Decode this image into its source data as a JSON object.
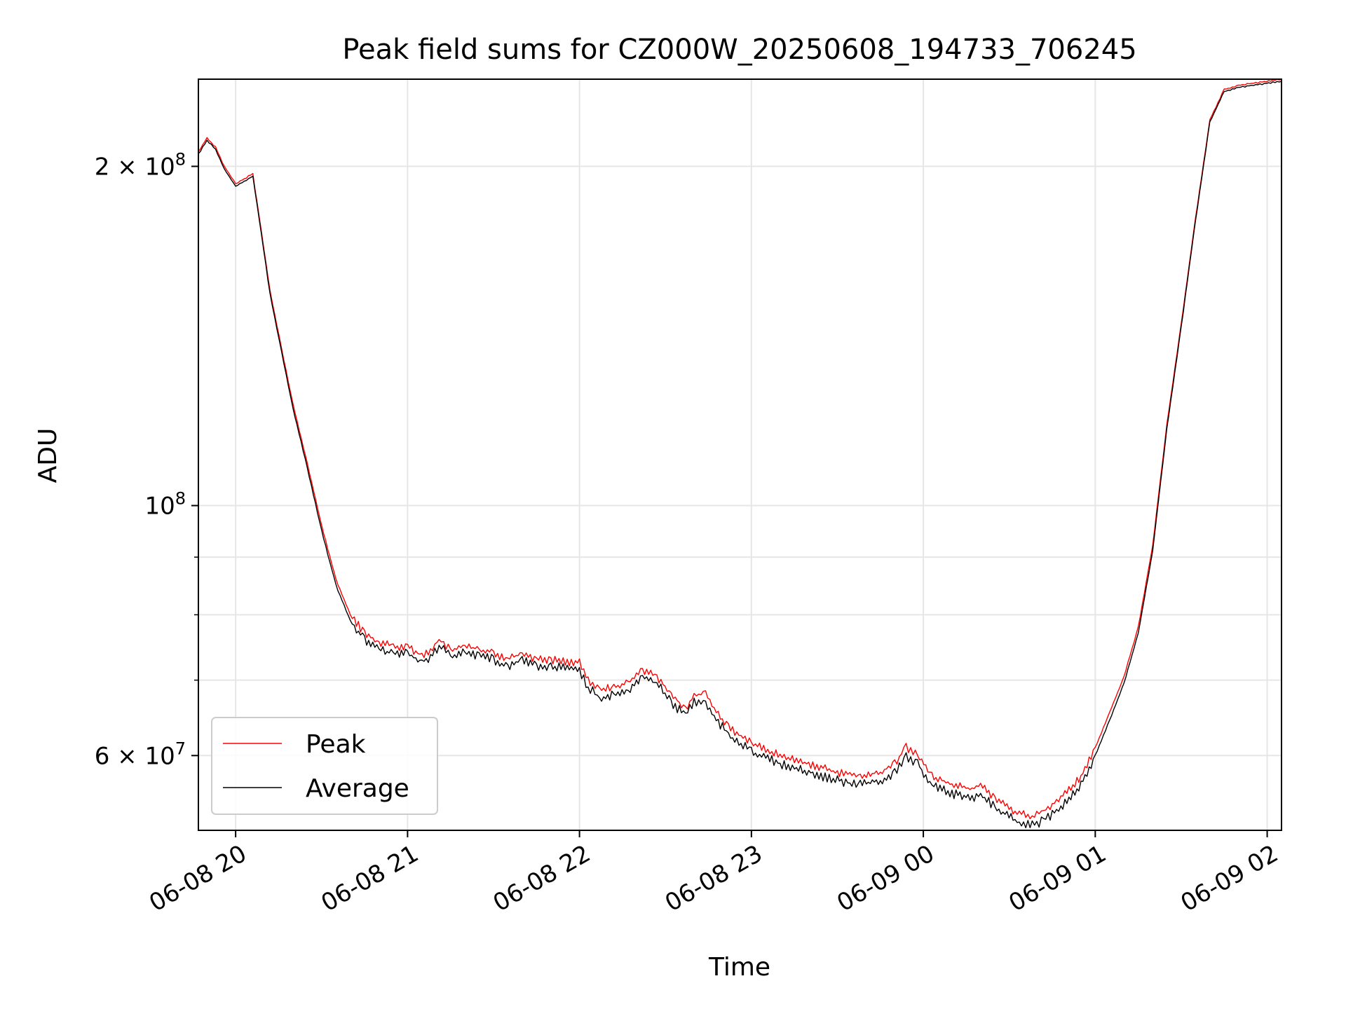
{
  "chart_data": {
    "type": "line",
    "title": "Peak field sums for CZ000W_20250608_194733_706245",
    "xlabel": "Time",
    "ylabel": "ADU",
    "x_scale": "time",
    "y_scale": "log",
    "xlim": [
      "2025-06-08 19:47",
      "2025-06-09 02:05"
    ],
    "ylim": [
      51500000,
      239000000
    ],
    "grid": true,
    "legend_position": "lower-left",
    "x_ticks": [
      {
        "value": "2025-06-08 20:00",
        "label": "06-08 20"
      },
      {
        "value": "2025-06-08 21:00",
        "label": "06-08 21"
      },
      {
        "value": "2025-06-08 22:00",
        "label": "06-08 22"
      },
      {
        "value": "2025-06-08 23:00",
        "label": "06-08 23"
      },
      {
        "value": "2025-06-09 00:00",
        "label": "06-09 00"
      },
      {
        "value": "2025-06-09 01:00",
        "label": "06-09 01"
      },
      {
        "value": "2025-06-09 02:00",
        "label": "06-09 02"
      }
    ],
    "y_major_ticks": [
      {
        "value": 60000000,
        "mantissa": "6",
        "exponent": "7"
      },
      {
        "value": 100000000,
        "mantissa": "",
        "exponent": "8"
      },
      {
        "value": 200000000,
        "mantissa": "2",
        "exponent": "8"
      }
    ],
    "y_minor_ticks": [
      70000000,
      80000000,
      90000000
    ],
    "series": [
      {
        "name": "Peak",
        "color": "#ff0000",
        "x": [
          "2025-06-08 19:47",
          "2025-06-08 19:50",
          "2025-06-08 19:53",
          "2025-06-08 19:56",
          "2025-06-08 20:00",
          "2025-06-08 20:03",
          "2025-06-08 20:06",
          "2025-06-08 20:09",
          "2025-06-08 20:12",
          "2025-06-08 20:16",
          "2025-06-08 20:20",
          "2025-06-08 20:25",
          "2025-06-08 20:30",
          "2025-06-08 20:35",
          "2025-06-08 20:40",
          "2025-06-08 20:45",
          "2025-06-08 20:50",
          "2025-06-08 20:55",
          "2025-06-08 21:00",
          "2025-06-08 21:05",
          "2025-06-08 21:08",
          "2025-06-08 21:11",
          "2025-06-08 21:15",
          "2025-06-08 21:20",
          "2025-06-08 21:25",
          "2025-06-08 21:30",
          "2025-06-08 21:35",
          "2025-06-08 21:40",
          "2025-06-08 21:45",
          "2025-06-08 21:50",
          "2025-06-08 22:00",
          "2025-06-08 22:03",
          "2025-06-08 22:07",
          "2025-06-08 22:12",
          "2025-06-08 22:17",
          "2025-06-08 22:22",
          "2025-06-08 22:27",
          "2025-06-08 22:32",
          "2025-06-08 22:37",
          "2025-06-08 22:40",
          "2025-06-08 22:44",
          "2025-06-08 22:47",
          "2025-06-08 22:52",
          "2025-06-08 23:00",
          "2025-06-08 23:10",
          "2025-06-08 23:20",
          "2025-06-08 23:30",
          "2025-06-08 23:38",
          "2025-06-08 23:45",
          "2025-06-08 23:50",
          "2025-06-08 23:54",
          "2025-06-08 23:58",
          "2025-06-09 00:03",
          "2025-06-09 00:10",
          "2025-06-09 00:17",
          "2025-06-09 00:20",
          "2025-06-09 00:25",
          "2025-06-09 00:32",
          "2025-06-09 00:38",
          "2025-06-09 00:42",
          "2025-06-09 00:48",
          "2025-06-09 00:55",
          "2025-06-09 01:00",
          "2025-06-09 01:05",
          "2025-06-09 01:10",
          "2025-06-09 01:15",
          "2025-06-09 01:20",
          "2025-06-09 01:25",
          "2025-06-09 01:30",
          "2025-06-09 01:35",
          "2025-06-09 01:40",
          "2025-06-09 01:45",
          "2025-06-09 01:50",
          "2025-06-09 02:05"
        ],
        "y": [
          206000000,
          212000000,
          208000000,
          200000000,
          193000000,
          195000000,
          197000000,
          175000000,
          155000000,
          138000000,
          123000000,
          109000000,
          96000000,
          86000000,
          80000000,
          77000000,
          75500000,
          75000000,
          75000000,
          73500000,
          74500000,
          76000000,
          74500000,
          75000000,
          74500000,
          74000000,
          73000000,
          74000000,
          73000000,
          73000000,
          72500000,
          70000000,
          68500000,
          69000000,
          69500000,
          71500000,
          70500000,
          68000000,
          66000000,
          68000000,
          68000000,
          66000000,
          63500000,
          61500000,
          60000000,
          59000000,
          58000000,
          57500000,
          58000000,
          59000000,
          61000000,
          60000000,
          57500000,
          56500000,
          56000000,
          56500000,
          55000000,
          53500000,
          53000000,
          53500000,
          55000000,
          57500000,
          61000000,
          65500000,
          70500000,
          78000000,
          92000000,
          118000000,
          145000000,
          180000000,
          220000000,
          234000000,
          236000000,
          239000000
        ]
      },
      {
        "name": "Average",
        "color": "#000000",
        "x": [
          "2025-06-08 19:47",
          "2025-06-08 19:50",
          "2025-06-08 19:53",
          "2025-06-08 19:56",
          "2025-06-08 20:00",
          "2025-06-08 20:03",
          "2025-06-08 20:06",
          "2025-06-08 20:09",
          "2025-06-08 20:12",
          "2025-06-08 20:16",
          "2025-06-08 20:20",
          "2025-06-08 20:25",
          "2025-06-08 20:30",
          "2025-06-08 20:35",
          "2025-06-08 20:40",
          "2025-06-08 20:45",
          "2025-06-08 20:50",
          "2025-06-08 20:55",
          "2025-06-08 21:00",
          "2025-06-08 21:05",
          "2025-06-08 21:08",
          "2025-06-08 21:11",
          "2025-06-08 21:15",
          "2025-06-08 21:20",
          "2025-06-08 21:25",
          "2025-06-08 21:30",
          "2025-06-08 21:35",
          "2025-06-08 21:40",
          "2025-06-08 21:45",
          "2025-06-08 21:50",
          "2025-06-08 22:00",
          "2025-06-08 22:03",
          "2025-06-08 22:07",
          "2025-06-08 22:12",
          "2025-06-08 22:17",
          "2025-06-08 22:22",
          "2025-06-08 22:27",
          "2025-06-08 22:32",
          "2025-06-08 22:37",
          "2025-06-08 22:40",
          "2025-06-08 22:44",
          "2025-06-08 22:47",
          "2025-06-08 22:52",
          "2025-06-08 23:00",
          "2025-06-08 23:10",
          "2025-06-08 23:20",
          "2025-06-08 23:30",
          "2025-06-08 23:38",
          "2025-06-08 23:45",
          "2025-06-08 23:50",
          "2025-06-08 23:54",
          "2025-06-08 23:58",
          "2025-06-09 00:03",
          "2025-06-09 00:10",
          "2025-06-09 00:17",
          "2025-06-09 00:20",
          "2025-06-09 00:25",
          "2025-06-09 00:32",
          "2025-06-09 00:38",
          "2025-06-09 00:42",
          "2025-06-09 00:48",
          "2025-06-09 00:55",
          "2025-06-09 01:00",
          "2025-06-09 01:05",
          "2025-06-09 01:10",
          "2025-06-09 01:15",
          "2025-06-09 01:20",
          "2025-06-09 01:25",
          "2025-06-09 01:30",
          "2025-06-09 01:35",
          "2025-06-09 01:40",
          "2025-06-09 01:45",
          "2025-06-09 01:50",
          "2025-06-09 02:05"
        ],
        "y": [
          205000000,
          211000000,
          207000000,
          199000000,
          192000000,
          194000000,
          196000000,
          174000000,
          154000000,
          137000000,
          122000000,
          108000000,
          95000000,
          85000000,
          79000000,
          76000000,
          74500000,
          74000000,
          74000000,
          72500000,
          73500000,
          75000000,
          73500000,
          74000000,
          73500000,
          73000000,
          72000000,
          73000000,
          72000000,
          72000000,
          71500000,
          69000000,
          67500000,
          68000000,
          68500000,
          70500000,
          69500000,
          67000000,
          65000000,
          67000000,
          67000000,
          65000000,
          62500000,
          60500000,
          59000000,
          58000000,
          57000000,
          56500000,
          57000000,
          58000000,
          60000000,
          59000000,
          56500000,
          55500000,
          55000000,
          55500000,
          54000000,
          52500000,
          52000000,
          52500000,
          54000000,
          56500000,
          60000000,
          64500000,
          69500000,
          77000000,
          91000000,
          117000000,
          144000000,
          179000000,
          219000000,
          233000000,
          235000000,
          238000000
        ]
      }
    ]
  }
}
